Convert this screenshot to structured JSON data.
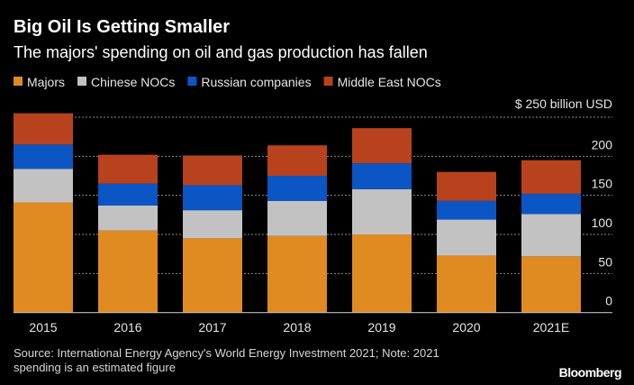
{
  "chart_data": {
    "type": "bar",
    "stacked": true,
    "title": "Big Oil Is Getting Smaller",
    "subtitle": "The majors' spending on oil and gas production has fallen",
    "categories": [
      "2015",
      "2016",
      "2017",
      "2018",
      "2019",
      "2020",
      "2021E"
    ],
    "series": [
      {
        "name": "Majors",
        "color": "#e08a22",
        "values": [
          141,
          105,
          95,
          98,
          100,
          73,
          72
        ]
      },
      {
        "name": "Chinese NOCs",
        "color": "#c2c2c2",
        "values": [
          43,
          32,
          36,
          45,
          58,
          46,
          54
        ]
      },
      {
        "name": "Russian companies",
        "color": "#0b55c4",
        "values": [
          31,
          28,
          32,
          32,
          33,
          24,
          26
        ]
      },
      {
        "name": "Middle East NOCs",
        "color": "#b8421d",
        "values": [
          40,
          37,
          38,
          39,
          45,
          37,
          43
        ]
      }
    ],
    "ylabel": "$ 250 billion USD",
    "y_ticks": [
      "0",
      "50",
      "100",
      "150",
      "200"
    ],
    "ylim": [
      0,
      250
    ],
    "grid": true,
    "legend_position": "top-left",
    "y_axis_position": "right"
  },
  "source": {
    "line1": "Source: International Energy Agency's World Energy Investment 2021; Note: 2021",
    "line2": "spending is an estimated figure"
  },
  "brand": "Bloomberg"
}
